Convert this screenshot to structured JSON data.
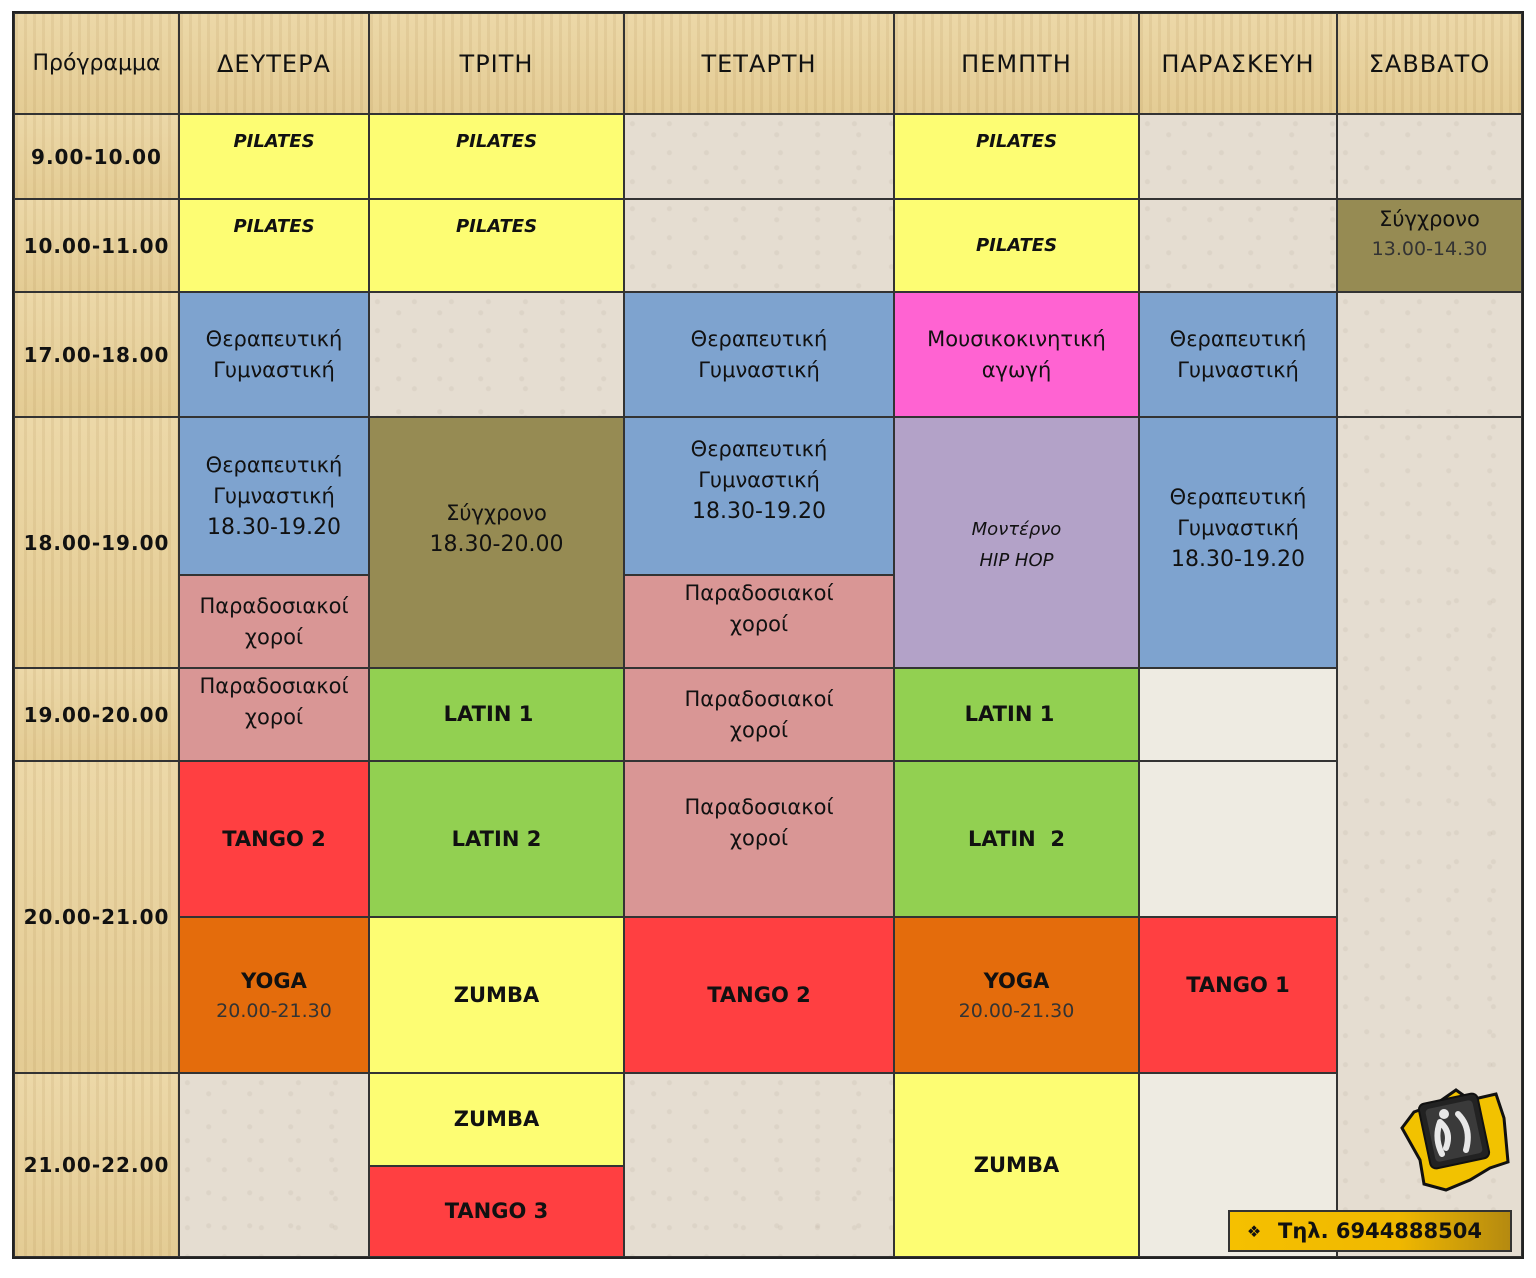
{
  "header": {
    "corner": "Πρόγραμμα",
    "days": [
      "ΔΕΥΤΕΡΑ",
      "ΤΡΙΤΗ",
      "ΤΕΤΑΡΤΗ",
      "ΠΕΜΠΤΗ",
      "ΠΑΡΑΣΚΕΥΗ",
      "ΣΑΒΒΑΤΟ"
    ]
  },
  "times": [
    "9.00-10.00",
    "10.00-11.00",
    "17.00-18.00",
    "18.00-19.00",
    "19.00-20.00",
    "20.00-21.00",
    "21.00-22.00"
  ],
  "classes": {
    "pilates": "PILATES",
    "therapeutic_1": "Θεραπευτική",
    "therapeutic_2": "Γυμναστική",
    "music_1": "Μουσικοκινητική",
    "music_2": "αγωγή",
    "traditional_1": "Παραδοσιακοί",
    "traditional_2": "χοροί",
    "contemporary": "Σύγχρονο",
    "modern_1": "Μοντέρνο",
    "modern_2": "HIP HOP",
    "latin1": "LATIN 1",
    "latin2": "LATIN 2",
    "latin2_alt": "LATIN  2",
    "tango1": "TANGO 1",
    "tango2": "TANGO 2",
    "tango3": "TANGO 3",
    "yoga": "YOGA",
    "zumba": "ZUMBA"
  },
  "subtimes": {
    "t1830_1920": "18.30-19.20",
    "t1830_2000": "18.30-20.00",
    "t1300_1430": "13.00-14.30",
    "t2000_2130": "20.00-21.30"
  },
  "contact": {
    "bullet": "❖",
    "phone": "Τηλ. 6944888504"
  },
  "colors": {
    "header_bg": "#e8d29e",
    "empty_bg": "#e5ddd1",
    "pilates": "#fdfd73",
    "therapeutic": "#7ea3cf",
    "music": "#ff63d2",
    "contemporary": "#968b53",
    "hiphop": "#b3a2c8",
    "traditional": "#d99695",
    "latin": "#92d051",
    "tango": "#ff3f41",
    "yoga": "#e46c0c",
    "phone_box": "#f5c000"
  }
}
